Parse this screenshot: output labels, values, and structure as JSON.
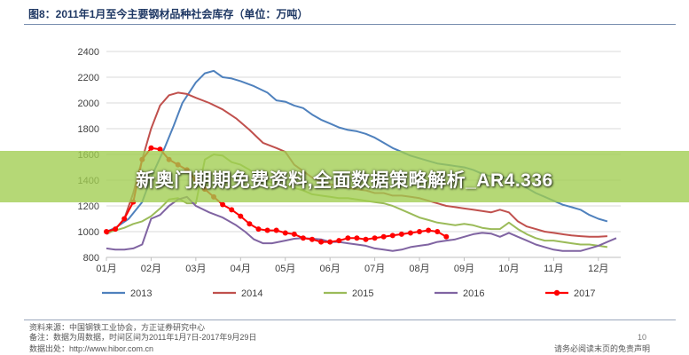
{
  "figure": {
    "title": "图8：2011年1月至今主要钢材品种社会库存（单位：万吨）"
  },
  "banner": {
    "text": "新奥门期期免费资料,全面数据策略解析_AR4.336"
  },
  "footer": {
    "source_line1": "资料来源：中国钢铁工业协会，方正证券研究中心",
    "source_line2": "备注：数据为周数据，时间区间为2011年1月7日-2017年9月29日",
    "source_line3": "数据出处：http://www.hibor.com.cn",
    "page_number": "10",
    "disclaimer": "请务必阅读末页的免责声明"
  },
  "colors": {
    "2013": "#4f81bd",
    "2014": "#c0504d",
    "2015": "#9bbb59",
    "2016": "#8064a2",
    "2017": "#ff0000",
    "grid": "#d9d9d9",
    "axis_text": "#404040"
  },
  "chart_data": {
    "type": "line",
    "title": "2011年1月至今主要钢材品种社会库存（单位：万吨）",
    "xlabel": "",
    "ylabel": "",
    "categories": [
      "01月",
      "02月",
      "03月",
      "04月",
      "05月",
      "06月",
      "07月",
      "08月",
      "09月",
      "10月",
      "11月",
      "12月"
    ],
    "xlim": [
      0,
      11.5
    ],
    "ylim": [
      800,
      2400
    ],
    "yticks": [
      800,
      1000,
      1200,
      1400,
      1600,
      1800,
      2000,
      2200,
      2400
    ],
    "grid": "horizontal",
    "legend_position": "bottom",
    "series": [
      {
        "name": "2013",
        "points": [
          [
            0,
            1000
          ],
          [
            0.2,
            1030
          ],
          [
            0.5,
            1100
          ],
          [
            0.8,
            1230
          ],
          [
            1.0,
            1420
          ],
          [
            1.3,
            1650
          ],
          [
            1.5,
            1820
          ],
          [
            1.7,
            2000
          ],
          [
            2.0,
            2160
          ],
          [
            2.2,
            2230
          ],
          [
            2.4,
            2250
          ],
          [
            2.6,
            2200
          ],
          [
            2.8,
            2190
          ],
          [
            3.0,
            2170
          ],
          [
            3.3,
            2130
          ],
          [
            3.6,
            2080
          ],
          [
            3.8,
            2020
          ],
          [
            4.0,
            2010
          ],
          [
            4.2,
            1980
          ],
          [
            4.4,
            1960
          ],
          [
            4.6,
            1910
          ],
          [
            4.8,
            1870
          ],
          [
            5.0,
            1840
          ],
          [
            5.2,
            1810
          ],
          [
            5.4,
            1790
          ],
          [
            5.6,
            1780
          ],
          [
            5.8,
            1760
          ],
          [
            6.0,
            1730
          ],
          [
            6.2,
            1690
          ],
          [
            6.4,
            1650
          ],
          [
            6.6,
            1620
          ],
          [
            6.8,
            1590
          ],
          [
            7.0,
            1570
          ],
          [
            7.2,
            1550
          ],
          [
            7.4,
            1530
          ],
          [
            7.6,
            1520
          ],
          [
            7.8,
            1510
          ],
          [
            8.0,
            1500
          ],
          [
            8.2,
            1480
          ],
          [
            8.4,
            1450
          ],
          [
            8.6,
            1430
          ],
          [
            8.8,
            1420
          ],
          [
            9.0,
            1420
          ],
          [
            9.2,
            1380
          ],
          [
            9.4,
            1340
          ],
          [
            9.6,
            1300
          ],
          [
            9.8,
            1270
          ],
          [
            10.0,
            1240
          ],
          [
            10.2,
            1210
          ],
          [
            10.4,
            1190
          ],
          [
            10.6,
            1170
          ],
          [
            10.8,
            1130
          ],
          [
            11.0,
            1100
          ],
          [
            11.2,
            1080
          ]
        ]
      },
      {
        "name": "2014",
        "points": [
          [
            0,
            980
          ],
          [
            0.2,
            1020
          ],
          [
            0.4,
            1100
          ],
          [
            0.6,
            1300
          ],
          [
            0.8,
            1560
          ],
          [
            1.0,
            1800
          ],
          [
            1.2,
            1980
          ],
          [
            1.4,
            2060
          ],
          [
            1.6,
            2080
          ],
          [
            1.8,
            2070
          ],
          [
            2.0,
            2040
          ],
          [
            2.3,
            2000
          ],
          [
            2.6,
            1950
          ],
          [
            2.9,
            1880
          ],
          [
            3.2,
            1790
          ],
          [
            3.5,
            1690
          ],
          [
            3.8,
            1650
          ],
          [
            4.0,
            1620
          ],
          [
            4.2,
            1520
          ],
          [
            4.4,
            1470
          ],
          [
            4.6,
            1420
          ],
          [
            4.8,
            1390
          ],
          [
            5.0,
            1370
          ],
          [
            5.2,
            1350
          ],
          [
            5.4,
            1340
          ],
          [
            5.6,
            1330
          ],
          [
            5.8,
            1320
          ],
          [
            6.0,
            1300
          ],
          [
            6.2,
            1300
          ],
          [
            6.4,
            1280
          ],
          [
            6.6,
            1280
          ],
          [
            6.8,
            1270
          ],
          [
            7.0,
            1260
          ],
          [
            7.2,
            1240
          ],
          [
            7.4,
            1220
          ],
          [
            7.6,
            1200
          ],
          [
            7.8,
            1190
          ],
          [
            8.0,
            1180
          ],
          [
            8.2,
            1170
          ],
          [
            8.4,
            1160
          ],
          [
            8.6,
            1150
          ],
          [
            8.8,
            1170
          ],
          [
            9.0,
            1150
          ],
          [
            9.2,
            1080
          ],
          [
            9.4,
            1040
          ],
          [
            9.6,
            1020
          ],
          [
            9.8,
            1000
          ],
          [
            10.0,
            990
          ],
          [
            10.2,
            980
          ],
          [
            10.4,
            970
          ],
          [
            10.6,
            965
          ],
          [
            10.8,
            960
          ],
          [
            11.0,
            960
          ],
          [
            11.2,
            965
          ]
        ]
      },
      {
        "name": "2015",
        "points": [
          [
            0,
            990
          ],
          [
            0.2,
            1010
          ],
          [
            0.4,
            1030
          ],
          [
            0.6,
            1060
          ],
          [
            0.8,
            1080
          ],
          [
            1.0,
            1120
          ],
          [
            1.2,
            1180
          ],
          [
            1.4,
            1250
          ],
          [
            1.6,
            1260
          ],
          [
            1.8,
            1220
          ],
          [
            2.0,
            1220
          ],
          [
            2.2,
            1560
          ],
          [
            2.4,
            1600
          ],
          [
            2.6,
            1590
          ],
          [
            2.8,
            1540
          ],
          [
            3.0,
            1520
          ],
          [
            3.2,
            1480
          ],
          [
            3.4,
            1430
          ],
          [
            3.6,
            1390
          ],
          [
            3.8,
            1370
          ],
          [
            4.0,
            1360
          ],
          [
            4.2,
            1340
          ],
          [
            4.4,
            1320
          ],
          [
            4.6,
            1290
          ],
          [
            4.8,
            1280
          ],
          [
            5.0,
            1270
          ],
          [
            5.2,
            1260
          ],
          [
            5.4,
            1260
          ],
          [
            5.6,
            1250
          ],
          [
            5.8,
            1240
          ],
          [
            6.0,
            1230
          ],
          [
            6.2,
            1220
          ],
          [
            6.4,
            1200
          ],
          [
            6.6,
            1170
          ],
          [
            6.8,
            1140
          ],
          [
            7.0,
            1110
          ],
          [
            7.2,
            1090
          ],
          [
            7.4,
            1070
          ],
          [
            7.6,
            1060
          ],
          [
            7.8,
            1050
          ],
          [
            8.0,
            1060
          ],
          [
            8.2,
            1050
          ],
          [
            8.4,
            1030
          ],
          [
            8.6,
            1020
          ],
          [
            8.8,
            1020
          ],
          [
            9.0,
            1070
          ],
          [
            9.2,
            1020
          ],
          [
            9.4,
            980
          ],
          [
            9.6,
            950
          ],
          [
            9.8,
            930
          ],
          [
            10.0,
            930
          ],
          [
            10.2,
            920
          ],
          [
            10.4,
            910
          ],
          [
            10.6,
            900
          ],
          [
            10.8,
            900
          ],
          [
            11.0,
            890
          ],
          [
            11.2,
            880
          ]
        ]
      },
      {
        "name": "2016",
        "points": [
          [
            0,
            870
          ],
          [
            0.2,
            860
          ],
          [
            0.4,
            860
          ],
          [
            0.6,
            870
          ],
          [
            0.8,
            900
          ],
          [
            1.0,
            1100
          ],
          [
            1.2,
            1130
          ],
          [
            1.4,
            1200
          ],
          [
            1.6,
            1250
          ],
          [
            1.8,
            1270
          ],
          [
            2.0,
            1200
          ],
          [
            2.3,
            1150
          ],
          [
            2.6,
            1110
          ],
          [
            2.9,
            1050
          ],
          [
            3.1,
            1000
          ],
          [
            3.3,
            940
          ],
          [
            3.5,
            910
          ],
          [
            3.7,
            910
          ],
          [
            4.0,
            930
          ],
          [
            4.2,
            945
          ],
          [
            4.4,
            950
          ],
          [
            4.6,
            945
          ],
          [
            4.8,
            940
          ],
          [
            5.0,
            920
          ],
          [
            5.2,
            920
          ],
          [
            5.4,
            910
          ],
          [
            5.6,
            900
          ],
          [
            5.8,
            890
          ],
          [
            6.0,
            870
          ],
          [
            6.2,
            860
          ],
          [
            6.4,
            850
          ],
          [
            6.6,
            860
          ],
          [
            6.8,
            880
          ],
          [
            7.0,
            890
          ],
          [
            7.2,
            900
          ],
          [
            7.4,
            920
          ],
          [
            7.6,
            930
          ],
          [
            7.8,
            940
          ],
          [
            8.0,
            960
          ],
          [
            8.2,
            980
          ],
          [
            8.4,
            990
          ],
          [
            8.6,
            985
          ],
          [
            8.8,
            960
          ],
          [
            9.0,
            990
          ],
          [
            9.2,
            960
          ],
          [
            9.4,
            930
          ],
          [
            9.6,
            900
          ],
          [
            9.8,
            880
          ],
          [
            10.0,
            860
          ],
          [
            10.2,
            850
          ],
          [
            10.4,
            850
          ],
          [
            10.6,
            850
          ],
          [
            10.8,
            870
          ],
          [
            11.0,
            890
          ],
          [
            11.2,
            920
          ],
          [
            11.4,
            950
          ]
        ]
      },
      {
        "name": "2017",
        "points": [
          [
            0,
            1000
          ],
          [
            0.2,
            1020
          ],
          [
            0.4,
            1100
          ],
          [
            0.6,
            1230
          ],
          [
            0.8,
            1560
          ],
          [
            1.0,
            1650
          ],
          [
            1.2,
            1640
          ],
          [
            1.4,
            1560
          ],
          [
            1.6,
            1520
          ],
          [
            1.8,
            1480
          ],
          [
            2.0,
            1400
          ],
          [
            2.2,
            1330
          ],
          [
            2.4,
            1270
          ],
          [
            2.6,
            1210
          ],
          [
            2.8,
            1170
          ],
          [
            3.0,
            1120
          ],
          [
            3.2,
            1060
          ],
          [
            3.4,
            1020
          ],
          [
            3.6,
            1010
          ],
          [
            3.8,
            1010
          ],
          [
            4.0,
            990
          ],
          [
            4.2,
            980
          ],
          [
            4.4,
            950
          ],
          [
            4.6,
            940
          ],
          [
            4.8,
            920
          ],
          [
            5.0,
            920
          ],
          [
            5.2,
            930
          ],
          [
            5.4,
            950
          ],
          [
            5.6,
            950
          ],
          [
            5.8,
            940
          ],
          [
            6.0,
            950
          ],
          [
            6.2,
            960
          ],
          [
            6.4,
            970
          ],
          [
            6.6,
            980
          ],
          [
            6.8,
            990
          ],
          [
            7.0,
            1000
          ],
          [
            7.2,
            1010
          ],
          [
            7.4,
            1000
          ],
          [
            7.6,
            960
          ]
        ]
      }
    ]
  }
}
